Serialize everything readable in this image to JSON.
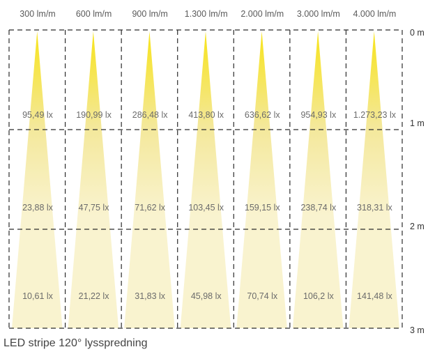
{
  "title": "LED stripe 120° lysspredning",
  "columns": [
    {
      "label": "300 lm/m",
      "lux": [
        "95,49 lx",
        "23,88 lx",
        "10,61 lx"
      ]
    },
    {
      "label": "600 lm/m",
      "lux": [
        "190,99 lx",
        "47,75 lx",
        "21,22 lx"
      ]
    },
    {
      "label": "900 lm/m",
      "lux": [
        "286,48 lx",
        "71,62 lx",
        "31,83 lx"
      ]
    },
    {
      "label": "1.300 lm/m",
      "lux": [
        "413,80 lx",
        "103,45 lx",
        "45,98 lx"
      ]
    },
    {
      "label": "2.000 lm/m",
      "lux": [
        "636,62 lx",
        "159,15 lx",
        "70,74 lx"
      ]
    },
    {
      "label": "3.000 lm/m",
      "lux": [
        "954,93 lx",
        "238,74 lx",
        "106,2 lx"
      ]
    },
    {
      "label": "4.000 lm/m",
      "lux": [
        "1.273,23 lx",
        "318,31 lx",
        "141,48 lx"
      ]
    }
  ],
  "distances": [
    "0 m",
    "1 m",
    "2 m",
    "3 m"
  ],
  "colors": {
    "beam_top": "#f7e31a",
    "beam_mid": "#f4e89a",
    "beam_bottom": "#f9f3cf",
    "grid_line": "#2b2b2b"
  }
}
